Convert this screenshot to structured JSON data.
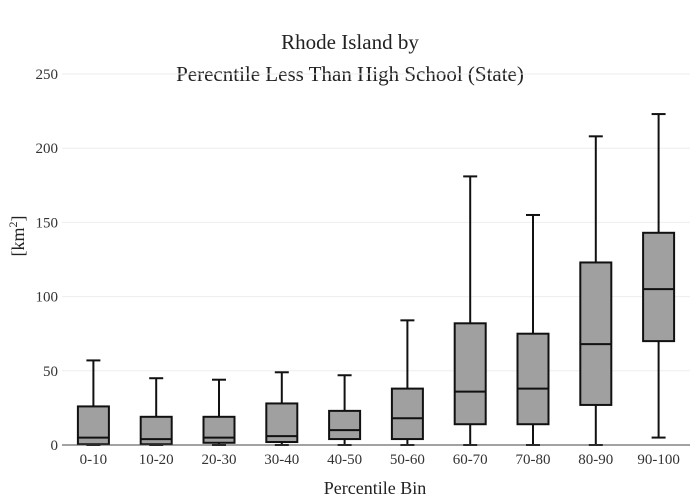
{
  "chart_data": {
    "type": "box",
    "title_line1": "Rhode Island  by",
    "title_line2": "Perecntile Less Than High School (State)",
    "xlabel": "Percentile Bin",
    "ylabel": "[km",
    "ylabel_sup": "2",
    "ylabel_close": "]",
    "ylim": [
      0,
      250
    ],
    "yticks": [
      0,
      50,
      100,
      150,
      200,
      250
    ],
    "grid": true,
    "box_color": "#a0a0a0",
    "line_color": "#111111",
    "categories": [
      "0-10",
      "10-20",
      "20-30",
      "30-40",
      "40-50",
      "50-60",
      "60-70",
      "70-80",
      "80-90",
      "90-100"
    ],
    "boxes": [
      {
        "min": 0,
        "q1": 0.5,
        "median": 5,
        "q3": 26,
        "max": 57
      },
      {
        "min": 0,
        "q1": 0.5,
        "median": 4,
        "q3": 19,
        "max": 45
      },
      {
        "min": 0,
        "q1": 1.5,
        "median": 5,
        "q3": 19,
        "max": 44
      },
      {
        "min": 0,
        "q1": 2,
        "median": 6,
        "q3": 28,
        "max": 49
      },
      {
        "min": 0,
        "q1": 4,
        "median": 10,
        "q3": 23,
        "max": 47
      },
      {
        "min": 0,
        "q1": 4,
        "median": 18,
        "q3": 38,
        "max": 84
      },
      {
        "min": 0,
        "q1": 14,
        "median": 36,
        "q3": 82,
        "max": 181
      },
      {
        "min": 0,
        "q1": 14,
        "median": 38,
        "q3": 75,
        "max": 155
      },
      {
        "min": 0,
        "q1": 27,
        "median": 68,
        "q3": 123,
        "max": 208
      },
      {
        "min": 5,
        "q1": 70,
        "median": 105,
        "q3": 143,
        "max": 223
      }
    ]
  }
}
